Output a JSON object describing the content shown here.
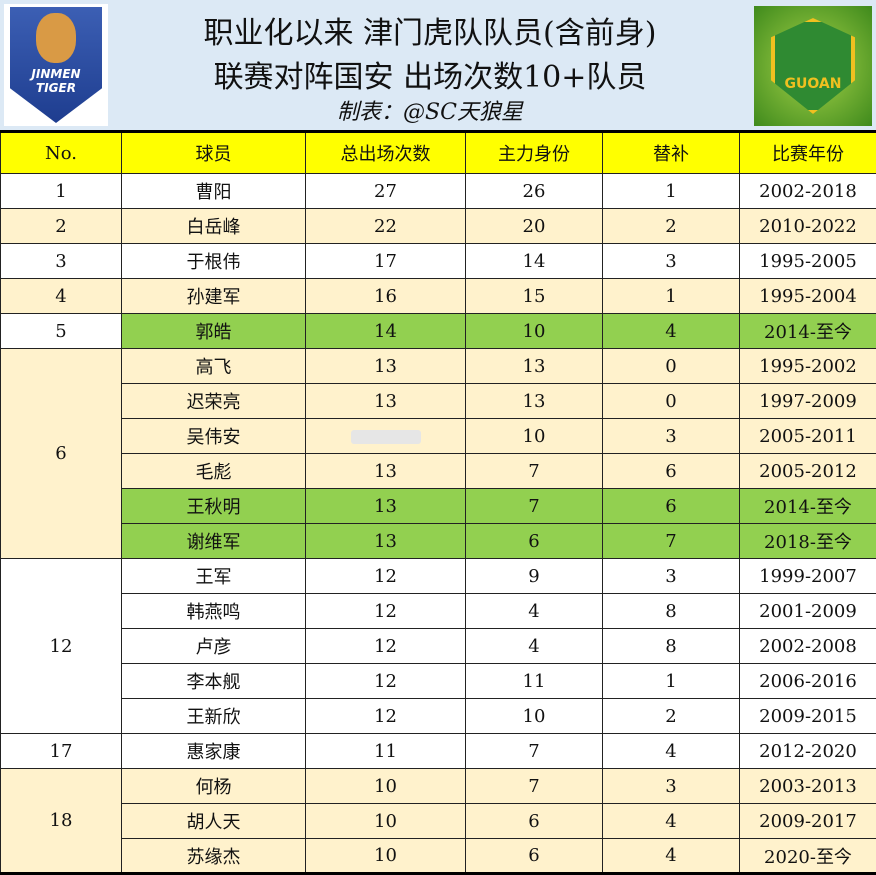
{
  "header": {
    "title_line1": "职业化以来 津门虎队队员(含前身)",
    "title_line2": "联赛对阵国安 出场次数10+队员",
    "credit": "制表：@SC天狼星",
    "logo_left": "JINMEN TIGER",
    "logo_right": "GUOAN"
  },
  "colors": {
    "header": "#ffff00",
    "cream": "#fff2cc",
    "green": "#92d050",
    "white": "#ffffff"
  },
  "columns": [
    "No.",
    "球员",
    "总出场次数",
    "主力身份",
    "替补",
    "比赛年份"
  ],
  "groups": [
    {
      "no": "1",
      "bg": "white",
      "rows": [
        {
          "name": "曹阳",
          "total": "27",
          "starter": "26",
          "sub": "1",
          "years": "2002-2018",
          "bg": "white"
        }
      ]
    },
    {
      "no": "2",
      "bg": "cream",
      "rows": [
        {
          "name": "白岳峰",
          "total": "22",
          "starter": "20",
          "sub": "2",
          "years": "2010-2022",
          "bg": "cream"
        }
      ]
    },
    {
      "no": "3",
      "bg": "white",
      "rows": [
        {
          "name": "于根伟",
          "total": "17",
          "starter": "14",
          "sub": "3",
          "years": "1995-2005",
          "bg": "white"
        }
      ]
    },
    {
      "no": "4",
      "bg": "cream",
      "rows": [
        {
          "name": "孙建军",
          "total": "16",
          "starter": "15",
          "sub": "1",
          "years": "1995-2004",
          "bg": "cream"
        }
      ]
    },
    {
      "no": "5",
      "bg": "white",
      "rows": [
        {
          "name": "郭皓",
          "total": "14",
          "starter": "10",
          "sub": "4",
          "years": "2014-至今",
          "bg": "green"
        }
      ]
    },
    {
      "no": "6",
      "bg": "cream",
      "rows": [
        {
          "name": "高飞",
          "total": "13",
          "starter": "13",
          "sub": "0",
          "years": "1995-2002",
          "bg": "cream"
        },
        {
          "name": "迟荣亮",
          "total": "13",
          "starter": "13",
          "sub": "0",
          "years": "1997-2009",
          "bg": "cream"
        },
        {
          "name": "吴伟安",
          "total": "",
          "starter": "10",
          "sub": "3",
          "years": "2005-2011",
          "bg": "cream"
        },
        {
          "name": "毛彪",
          "total": "13",
          "starter": "7",
          "sub": "6",
          "years": "2005-2012",
          "bg": "cream"
        },
        {
          "name": "王秋明",
          "total": "13",
          "starter": "7",
          "sub": "6",
          "years": "2014-至今",
          "bg": "green"
        },
        {
          "name": "谢维军",
          "total": "13",
          "starter": "6",
          "sub": "7",
          "years": "2018-至今",
          "bg": "green"
        }
      ]
    },
    {
      "no": "12",
      "bg": "white",
      "rows": [
        {
          "name": "王军",
          "total": "12",
          "starter": "9",
          "sub": "3",
          "years": "1999-2007",
          "bg": "white"
        },
        {
          "name": "韩燕鸣",
          "total": "12",
          "starter": "4",
          "sub": "8",
          "years": "2001-2009",
          "bg": "white"
        },
        {
          "name": "卢彦",
          "total": "12",
          "starter": "4",
          "sub": "8",
          "years": "2002-2008",
          "bg": "white"
        },
        {
          "name": "李本舰",
          "total": "12",
          "starter": "11",
          "sub": "1",
          "years": "2006-2016",
          "bg": "white"
        },
        {
          "name": "王新欣",
          "total": "12",
          "starter": "10",
          "sub": "2",
          "years": "2009-2015",
          "bg": "white"
        }
      ]
    },
    {
      "no": "17",
      "bg": "white",
      "rows": [
        {
          "name": "惠家康",
          "total": "11",
          "starter": "7",
          "sub": "4",
          "years": "2012-2020",
          "bg": "white"
        }
      ]
    },
    {
      "no": "18",
      "bg": "cream",
      "rows": [
        {
          "name": "何杨",
          "total": "10",
          "starter": "7",
          "sub": "3",
          "years": "2003-2013",
          "bg": "cream"
        },
        {
          "name": "胡人天",
          "total": "10",
          "starter": "6",
          "sub": "4",
          "years": "2009-2017",
          "bg": "cream"
        },
        {
          "name": "苏缘杰",
          "total": "10",
          "starter": "6",
          "sub": "4",
          "years": "2020-至今",
          "bg": "cream"
        }
      ]
    }
  ]
}
